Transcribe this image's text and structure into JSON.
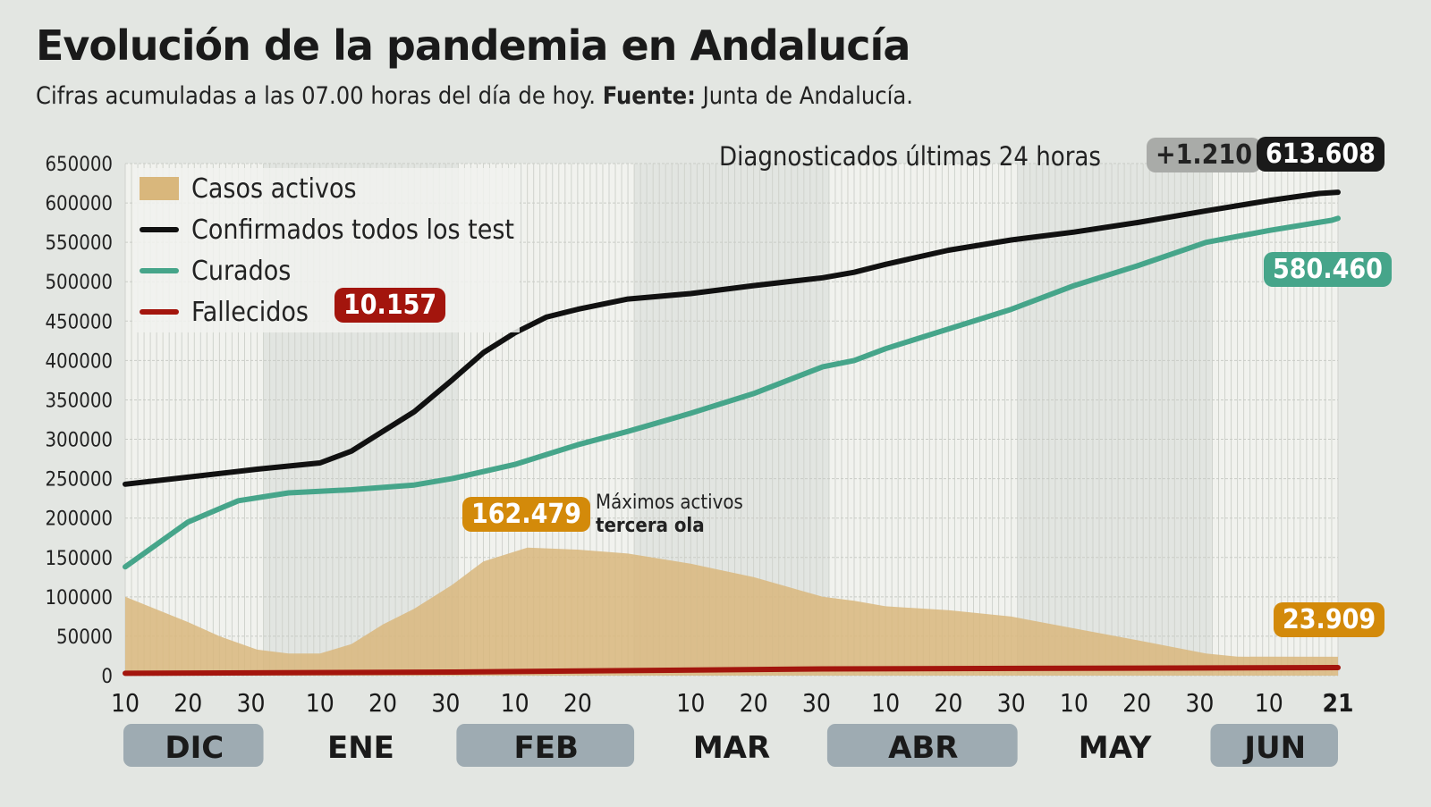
{
  "title": "Evolución de la pandemia en Andalucía",
  "subtitle": {
    "text": "Cifras acumuladas a las 07.00 horas del día de hoy.",
    "source_label": "Fuente:",
    "source": "Junta de Andalucía."
  },
  "chart_data": {
    "type": "line",
    "title": "Evolución de la pandemia en Andalucía",
    "ylim": [
      0,
      650000
    ],
    "yticks": [
      0,
      50000,
      100000,
      150000,
      200000,
      250000,
      300000,
      350000,
      400000,
      450000,
      500000,
      550000,
      600000,
      650000
    ],
    "xlim": [
      "2020-12-10",
      "2021-06-21"
    ],
    "xtick_labels": [
      {
        "date": "2020-12-10",
        "label": "10"
      },
      {
        "date": "2020-12-20",
        "label": "20"
      },
      {
        "date": "2020-12-30",
        "label": "30"
      },
      {
        "date": "2021-01-10",
        "label": "10"
      },
      {
        "date": "2021-01-20",
        "label": "20"
      },
      {
        "date": "2021-01-30",
        "label": "30"
      },
      {
        "date": "2021-02-10",
        "label": "10"
      },
      {
        "date": "2021-02-20",
        "label": "20"
      },
      {
        "date": "2021-03-10",
        "label": "10"
      },
      {
        "date": "2021-03-20",
        "label": "20"
      },
      {
        "date": "2021-03-30",
        "label": "30"
      },
      {
        "date": "2021-04-10",
        "label": "10"
      },
      {
        "date": "2021-04-20",
        "label": "20"
      },
      {
        "date": "2021-04-30",
        "label": "30"
      },
      {
        "date": "2021-05-10",
        "label": "10"
      },
      {
        "date": "2021-05-20",
        "label": "20"
      },
      {
        "date": "2021-05-30",
        "label": "30"
      },
      {
        "date": "2021-06-10",
        "label": "10"
      },
      {
        "date": "2021-06-21",
        "label": "21"
      }
    ],
    "months": [
      {
        "label": "DIC",
        "start": "2020-12-10",
        "end": "2020-12-31",
        "highlight": true
      },
      {
        "label": "ENE",
        "start": "2021-01-01",
        "end": "2021-01-31",
        "highlight": false
      },
      {
        "label": "FEB",
        "start": "2021-02-01",
        "end": "2021-02-28",
        "highlight": true
      },
      {
        "label": "MAR",
        "start": "2021-03-01",
        "end": "2021-03-31",
        "highlight": false
      },
      {
        "label": "ABR",
        "start": "2021-04-01",
        "end": "2021-04-30",
        "highlight": true
      },
      {
        "label": "MAY",
        "start": "2021-05-01",
        "end": "2021-05-31",
        "highlight": false
      },
      {
        "label": "JUN",
        "start": "2021-06-01",
        "end": "2021-06-21",
        "highlight": true
      }
    ],
    "grid": true,
    "legend_position": "top-left",
    "series": [
      {
        "name": "Casos activos",
        "kind": "area",
        "color": "#d9b77c",
        "points": [
          [
            "2020-12-10",
            100000
          ],
          [
            "2020-12-20",
            68000
          ],
          [
            "2020-12-25",
            50000
          ],
          [
            "2020-12-31",
            33000
          ],
          [
            "2021-01-05",
            28000
          ],
          [
            "2021-01-10",
            28000
          ],
          [
            "2021-01-15",
            40000
          ],
          [
            "2021-01-20",
            65000
          ],
          [
            "2021-01-25",
            85000
          ],
          [
            "2021-01-31",
            115000
          ],
          [
            "2021-02-05",
            145000
          ],
          [
            "2021-02-12",
            162479
          ],
          [
            "2021-02-20",
            160000
          ],
          [
            "2021-02-28",
            155000
          ],
          [
            "2021-03-10",
            142000
          ],
          [
            "2021-03-20",
            125000
          ],
          [
            "2021-03-31",
            100000
          ],
          [
            "2021-04-05",
            95000
          ],
          [
            "2021-04-10",
            88000
          ],
          [
            "2021-04-20",
            83000
          ],
          [
            "2021-04-30",
            75000
          ],
          [
            "2021-05-10",
            60000
          ],
          [
            "2021-05-20",
            45000
          ],
          [
            "2021-05-31",
            28000
          ],
          [
            "2021-06-05",
            24000
          ],
          [
            "2021-06-21",
            23909
          ]
        ]
      },
      {
        "name": "Confirmados todos los test",
        "kind": "line",
        "color": "#111111",
        "points": [
          [
            "2020-12-10",
            243000
          ],
          [
            "2020-12-20",
            252000
          ],
          [
            "2020-12-31",
            262000
          ],
          [
            "2021-01-10",
            270000
          ],
          [
            "2021-01-15",
            285000
          ],
          [
            "2021-01-20",
            310000
          ],
          [
            "2021-01-25",
            335000
          ],
          [
            "2021-01-31",
            375000
          ],
          [
            "2021-02-05",
            410000
          ],
          [
            "2021-02-10",
            435000
          ],
          [
            "2021-02-15",
            455000
          ],
          [
            "2021-02-20",
            465000
          ],
          [
            "2021-02-28",
            478000
          ],
          [
            "2021-03-10",
            485000
          ],
          [
            "2021-03-20",
            495000
          ],
          [
            "2021-03-31",
            505000
          ],
          [
            "2021-04-05",
            512000
          ],
          [
            "2021-04-10",
            522000
          ],
          [
            "2021-04-20",
            540000
          ],
          [
            "2021-04-30",
            553000
          ],
          [
            "2021-05-10",
            563000
          ],
          [
            "2021-05-20",
            575000
          ],
          [
            "2021-05-31",
            590000
          ],
          [
            "2021-06-10",
            603000
          ],
          [
            "2021-06-18",
            612000
          ],
          [
            "2021-06-21",
            613608
          ]
        ]
      },
      {
        "name": "Curados",
        "kind": "line",
        "color": "#46a58a",
        "points": [
          [
            "2020-12-10",
            138000
          ],
          [
            "2020-12-20",
            195000
          ],
          [
            "2020-12-28",
            222000
          ],
          [
            "2021-01-05",
            232000
          ],
          [
            "2021-01-15",
            236000
          ],
          [
            "2021-01-25",
            242000
          ],
          [
            "2021-01-31",
            250000
          ],
          [
            "2021-02-10",
            268000
          ],
          [
            "2021-02-20",
            293000
          ],
          [
            "2021-02-28",
            310000
          ],
          [
            "2021-03-10",
            333000
          ],
          [
            "2021-03-20",
            358000
          ],
          [
            "2021-03-31",
            392000
          ],
          [
            "2021-04-05",
            400000
          ],
          [
            "2021-04-10",
            415000
          ],
          [
            "2021-04-20",
            440000
          ],
          [
            "2021-04-30",
            465000
          ],
          [
            "2021-05-10",
            495000
          ],
          [
            "2021-05-20",
            520000
          ],
          [
            "2021-05-31",
            550000
          ],
          [
            "2021-06-10",
            565000
          ],
          [
            "2021-06-20",
            578000
          ],
          [
            "2021-06-21",
            580460
          ]
        ]
      },
      {
        "name": "Fallecidos",
        "kind": "line",
        "color": "#a3150d",
        "points": [
          [
            "2020-12-10",
            3000
          ],
          [
            "2021-01-31",
            4500
          ],
          [
            "2021-03-31",
            8500
          ],
          [
            "2021-06-21",
            10157
          ]
        ]
      }
    ],
    "annotations": {
      "diagnosed_label": "Diagnosticados últimas 24 horas",
      "diagnosed_delta": "+1.210",
      "confirmed_total": "613.608",
      "recovered_total": "580.460",
      "deaths_total": "10.157",
      "active_last": "23.909",
      "peak_value": "162.479",
      "peak_label_1": "Máximos activos",
      "peak_label_2": "tercera ola"
    }
  }
}
